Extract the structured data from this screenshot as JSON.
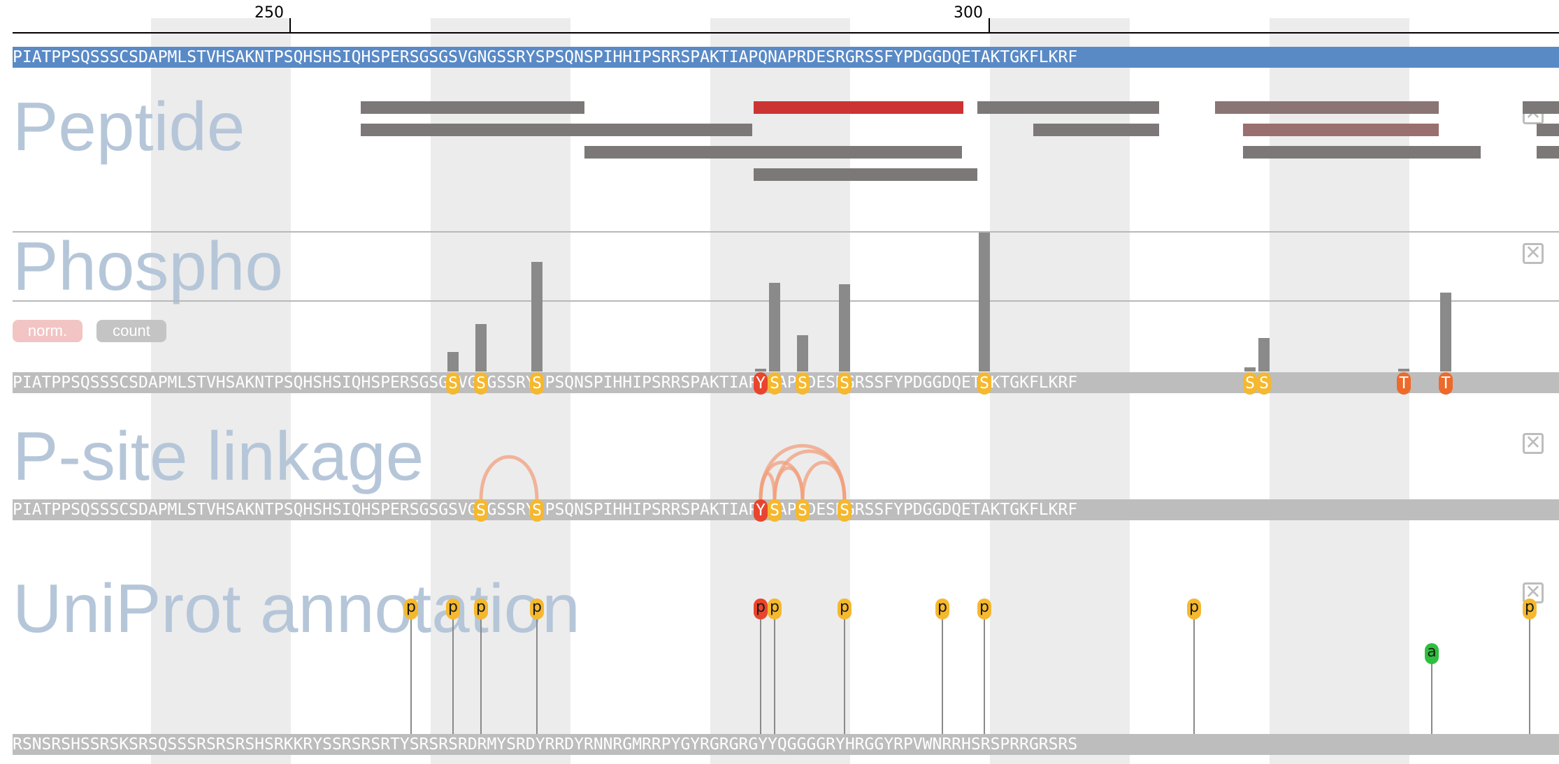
{
  "axis": {
    "ticks": [
      "250",
      "300"
    ]
  },
  "sequence": {
    "main": "PIATPPSQSSSCSDAPMLSTVHSAKNTPSQHSHSIQHSPERSGSGSVGNGSSRYSPSQNSPIHHIPSRRSPAKTIAPQNAPRDESRGRSSFYPDGGDQETAKTGKFLKRF",
    "annotation_track": "RSNSRSHSSRSKSRSQSSSRSRSRSHSRKKRYSSRSRSRTYSRSRSRDRMYSRDYRRDYRNNRGMRRPYGYRGRGRGYYQGGGGRYHRGGYRPVWNRRHSRSPRRGRSRS"
  },
  "tracks": {
    "peptide": {
      "title": "Peptide",
      "close_label": "✕"
    },
    "phospho": {
      "title": "Phospho",
      "close_label": "✕",
      "toggles": {
        "norm": "norm.",
        "count": "count"
      }
    },
    "linkage": {
      "title": "P-site linkage",
      "close_label": "✕"
    },
    "uniprot": {
      "title": "UniProt annotation",
      "close_label": "✕"
    }
  },
  "colors": {
    "sequence_bar": "#5a8ac6",
    "peptide_default": "#7d7878",
    "peptide_highlight": "#cc3333",
    "peptide_mauve": "#9a6f6f",
    "phospho_bar": "#8a8a8a",
    "site_yellow": "#f5b82e",
    "site_orange": "#ee6a2a",
    "site_red": "#e8452c",
    "arc": "#f2a07d",
    "acetyl_green": "#2fbf3f",
    "toggle_norm": "#f2c4c4",
    "toggle_count": "#c4c4c4"
  },
  "phospho_sites": [
    {
      "index": 31,
      "aa": "S",
      "count": 14,
      "type": "S"
    },
    {
      "index": 33,
      "aa": "S",
      "count": 34,
      "type": "S"
    },
    {
      "index": 37,
      "aa": "S",
      "count": 79,
      "type": "S"
    },
    {
      "index": 53,
      "aa": "Y",
      "count": 2,
      "type": "Y"
    },
    {
      "index": 54,
      "aa": "S",
      "count": 64,
      "type": "S"
    },
    {
      "index": 56,
      "aa": "S",
      "count": 26,
      "type": "S"
    },
    {
      "index": 59,
      "aa": "S",
      "count": 63,
      "type": "S"
    },
    {
      "index": 69,
      "aa": "S",
      "count": 100,
      "type": "S"
    },
    {
      "index": 88,
      "aa": "S",
      "count": 3,
      "type": "S"
    },
    {
      "index": 89,
      "aa": "S",
      "count": 24,
      "type": "S"
    },
    {
      "index": 99,
      "aa": "T",
      "count": 1,
      "type": "T"
    },
    {
      "index": 102,
      "aa": "T",
      "count": 57,
      "type": "T"
    }
  ],
  "linkages": [
    {
      "from": 33,
      "to": 37
    },
    {
      "from": 53,
      "to": 54
    },
    {
      "from": 53,
      "to": 56
    },
    {
      "from": 53,
      "to": 59
    },
    {
      "from": 54,
      "to": 56
    },
    {
      "from": 54,
      "to": 59
    },
    {
      "from": 56,
      "to": 59
    }
  ],
  "uniprot_annotations": [
    {
      "index": 28,
      "label": "p",
      "kind": "phospho"
    },
    {
      "index": 31,
      "label": "p",
      "kind": "phospho"
    },
    {
      "index": 33,
      "label": "p",
      "kind": "phospho"
    },
    {
      "index": 37,
      "label": "p",
      "kind": "phospho"
    },
    {
      "index": 53,
      "label": "p",
      "kind": "phospho-red"
    },
    {
      "index": 54,
      "label": "p",
      "kind": "phospho"
    },
    {
      "index": 59,
      "label": "p",
      "kind": "phospho"
    },
    {
      "index": 66,
      "label": "p",
      "kind": "phospho"
    },
    {
      "index": 69,
      "label": "p",
      "kind": "phospho"
    },
    {
      "index": 84,
      "label": "p",
      "kind": "phospho"
    },
    {
      "index": 101,
      "label": "a",
      "kind": "acetyl"
    },
    {
      "index": 108,
      "label": "p",
      "kind": "phospho"
    }
  ]
}
